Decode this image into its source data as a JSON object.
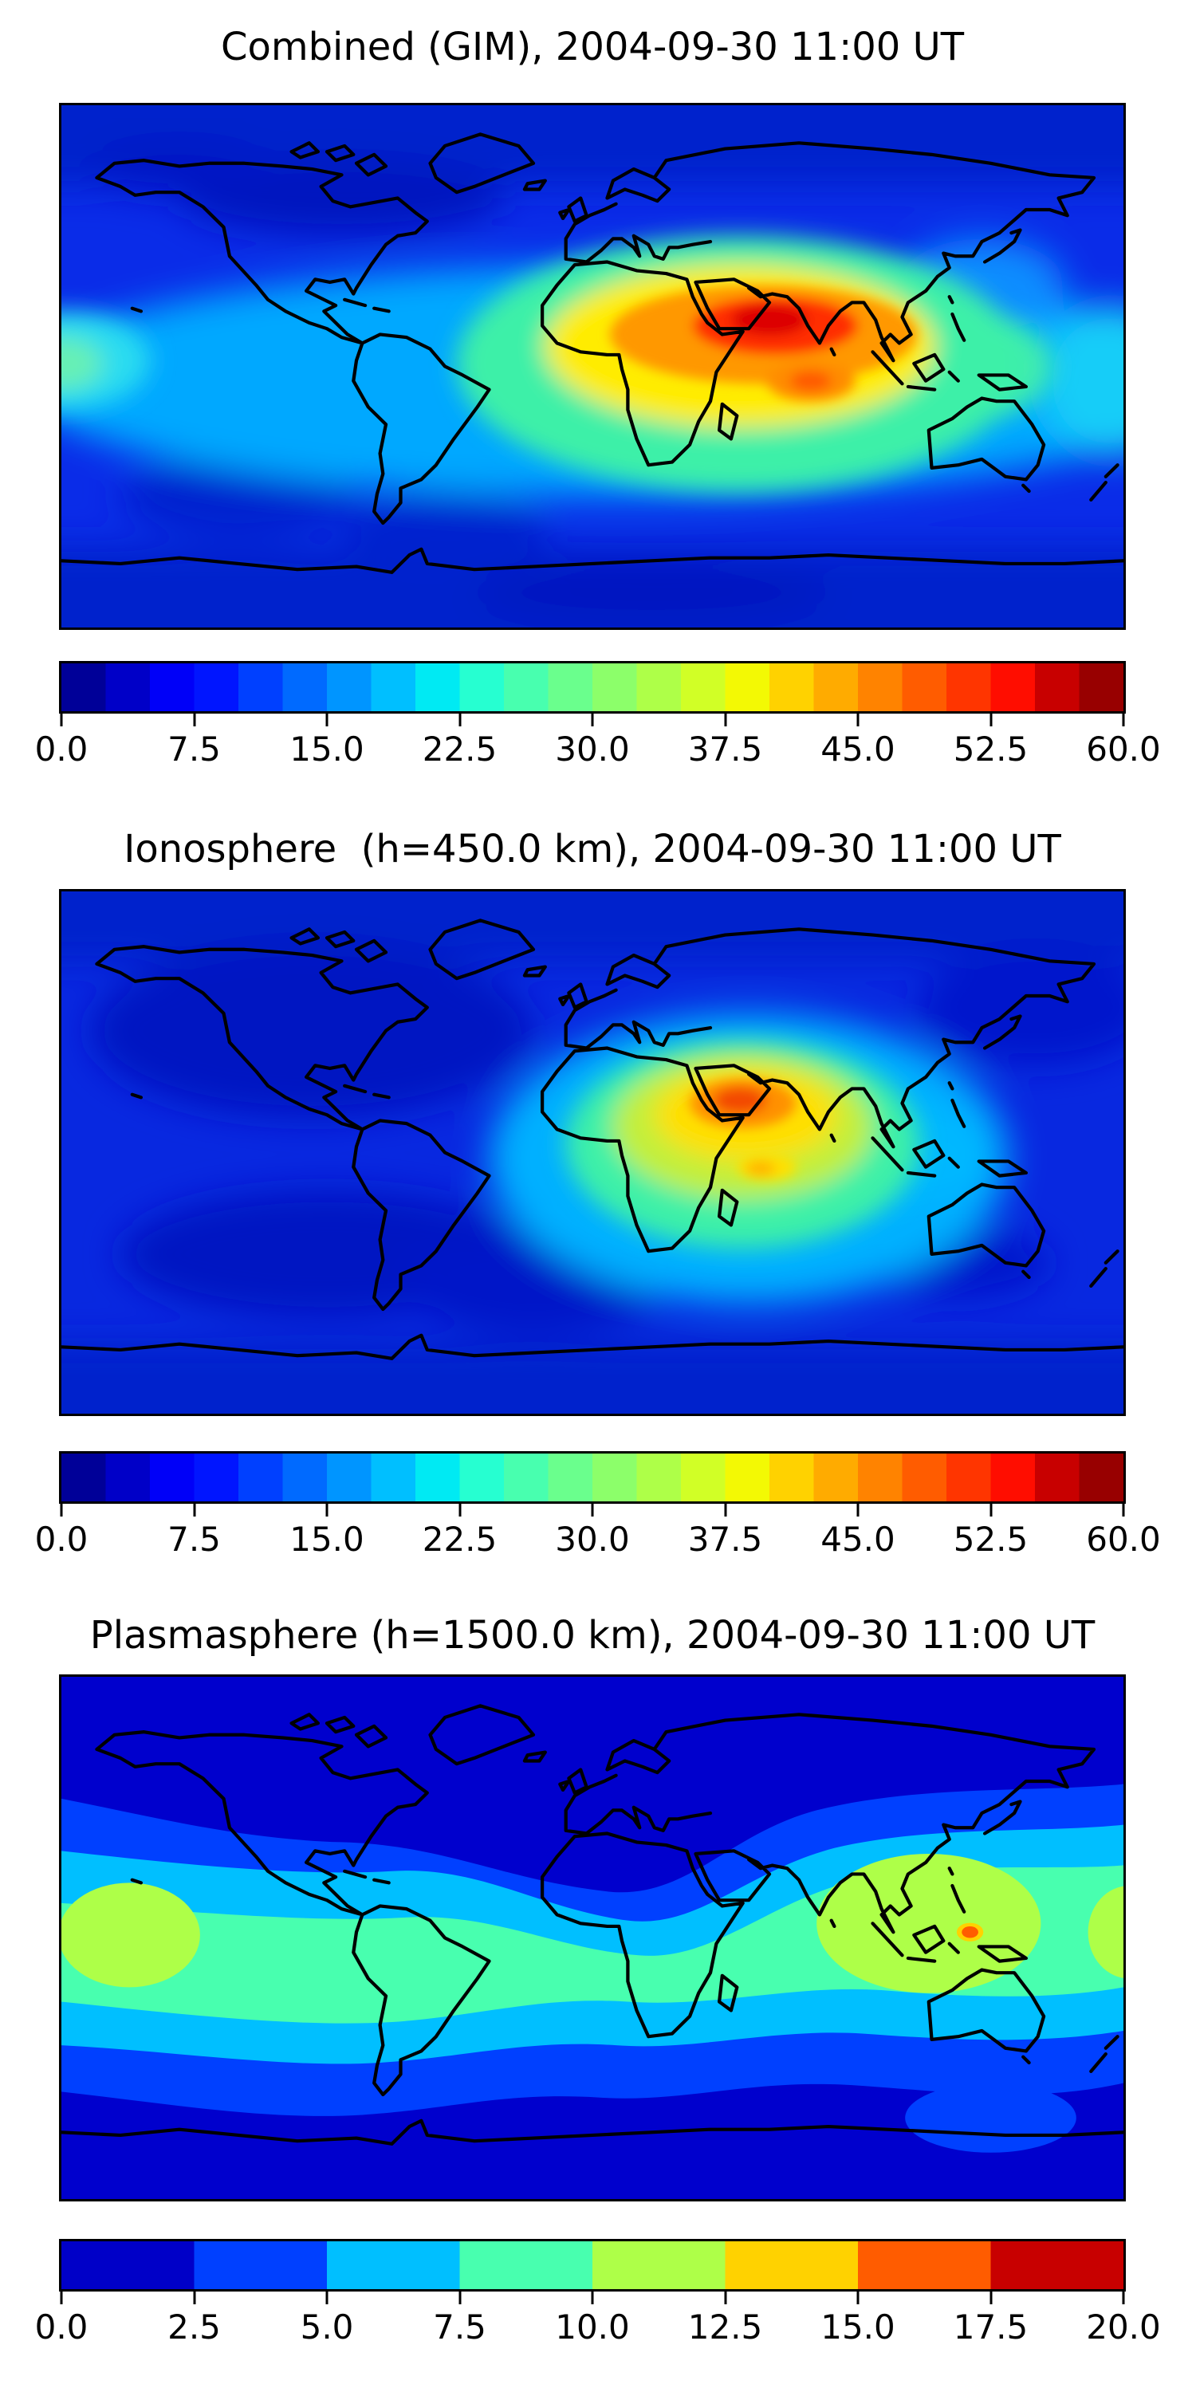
{
  "chart_data": [
    {
      "type": "heatmap",
      "subtype": "filled-contour-world-map",
      "title": "Combined (GIM), 2004-09-30 11:00 UT",
      "projection": "equirectangular",
      "lon_range": [
        -180,
        180
      ],
      "lat_range": [
        -90,
        90
      ],
      "grid_visible": false,
      "colormap": "jet",
      "levels_min": 0.0,
      "levels_max": 60.0,
      "levels_step": 2.5,
      "n_levels": 24,
      "colorbar_position": "bottom",
      "colorbar_ticks": [
        "0.0",
        "7.5",
        "15.0",
        "22.5",
        "30.0",
        "37.5",
        "45.0",
        "52.5",
        "60.0"
      ],
      "colorbar_colors": [
        "#000098",
        "#0000c8",
        "#0000f8",
        "#0015ff",
        "#0040ff",
        "#006aff",
        "#0095ff",
        "#00bfff",
        "#00eaf3",
        "#26ffd1",
        "#48ffaf",
        "#6aff8d",
        "#8cff6a",
        "#aeff48",
        "#d1ff26",
        "#f3f904",
        "#ffd200",
        "#ffab00",
        "#ff8300",
        "#ff5c00",
        "#ff3500",
        "#ff0d00",
        "#c80000",
        "#980000"
      ],
      "features": [
        {
          "name": "primary-maximum",
          "description": "deep red maximum over the Arabian Peninsula / Arabian Sea",
          "lon": 55,
          "lat": 15,
          "value_approx": 57.5
        },
        {
          "name": "secondary-maximum",
          "description": "orange secondary crest south of India",
          "lon": 74,
          "lat": -5,
          "value_approx": 45
        },
        {
          "name": "daytime-crest",
          "description": "yellow-orange band from North Africa across India to Southeast Asia",
          "value_approx": "35-50"
        },
        {
          "name": "equatorial-enhancement",
          "description": "cyan-green elevated band along low latitudes, reaching both map edges",
          "value_approx": "15-30"
        },
        {
          "name": "west-edge-patch",
          "description": "bright cyan-green patch at the western map edge near the equator",
          "lon": -178,
          "lat": 0,
          "value_approx": 25
        },
        {
          "name": "night-minima",
          "description": "dark blue minima over the Americas, high latitudes and southern ocean",
          "value_approx": "2.5-10"
        }
      ],
      "approx_grid": {
        "lons": [
          -150,
          -105,
          -60,
          -15,
          30,
          75,
          120,
          165
        ],
        "lats": [
          75,
          45,
          15,
          -15,
          -45,
          -75
        ],
        "values": [
          [
            5,
            5,
            5,
            5,
            6,
            6,
            6,
            5
          ],
          [
            8,
            6,
            5,
            8,
            14,
            18,
            12,
            8
          ],
          [
            18,
            12,
            12,
            25,
            42,
            52,
            30,
            20
          ],
          [
            18,
            14,
            10,
            16,
            28,
            30,
            20,
            15
          ],
          [
            8,
            7,
            6,
            7,
            10,
            12,
            10,
            9
          ],
          [
            5,
            5,
            5,
            5,
            6,
            6,
            5,
            5
          ]
        ]
      }
    },
    {
      "type": "heatmap",
      "subtype": "filled-contour-world-map",
      "title": "Ionosphere  (h=450.0 km), 2004-09-30 11:00 UT",
      "projection": "equirectangular",
      "lon_range": [
        -180,
        180
      ],
      "lat_range": [
        -90,
        90
      ],
      "grid_visible": false,
      "colormap": "jet",
      "levels_min": 0.0,
      "levels_max": 60.0,
      "levels_step": 2.5,
      "n_levels": 24,
      "colorbar_position": "bottom",
      "colorbar_ticks": [
        "0.0",
        "7.5",
        "15.0",
        "22.5",
        "30.0",
        "37.5",
        "45.0",
        "52.5",
        "60.0"
      ],
      "colorbar_colors": [
        "#000098",
        "#0000c8",
        "#0000f8",
        "#0015ff",
        "#0040ff",
        "#006aff",
        "#0095ff",
        "#00bfff",
        "#00eaf3",
        "#26ffd1",
        "#48ffaf",
        "#6aff8d",
        "#8cff6a",
        "#aeff48",
        "#d1ff26",
        "#f3f904",
        "#ffd200",
        "#ffab00",
        "#ff8300",
        "#ff5c00",
        "#ff3500",
        "#ff0d00",
        "#c80000",
        "#980000"
      ],
      "features": [
        {
          "name": "primary-maximum",
          "description": "compact orange-red maximum over the Arabian Peninsula",
          "lon": 50,
          "lat": 17,
          "value_approx": 50
        },
        {
          "name": "secondary-spot",
          "description": "small yellow spot in the Indian Ocean south of the equator",
          "lon": 60,
          "lat": -5,
          "value_approx": 40
        },
        {
          "name": "surrounding-crest",
          "description": "yellow-green halo over Africa, Middle East and India",
          "value_approx": "25-40"
        },
        {
          "name": "night-minima",
          "description": "large dark navy region over the Americas and Pacific",
          "value_approx": "2.5-7.5"
        }
      ],
      "approx_grid": {
        "lons": [
          -150,
          -105,
          -60,
          -15,
          30,
          75,
          120,
          165
        ],
        "lats": [
          75,
          45,
          15,
          -15,
          -45,
          -75
        ],
        "values": [
          [
            4,
            4,
            4,
            4,
            5,
            5,
            5,
            4
          ],
          [
            5,
            4,
            4,
            6,
            10,
            12,
            8,
            5
          ],
          [
            10,
            6,
            6,
            10,
            25,
            45,
            25,
            12
          ],
          [
            10,
            7,
            5,
            8,
            18,
            22,
            16,
            10
          ],
          [
            5,
            4,
            4,
            5,
            8,
            9,
            8,
            6
          ],
          [
            4,
            4,
            4,
            4,
            5,
            5,
            4,
            4
          ]
        ]
      }
    },
    {
      "type": "heatmap",
      "subtype": "filled-contour-world-map",
      "title": "Plasmasphere (h=1500.0 km), 2004-09-30 11:00 UT",
      "projection": "equirectangular",
      "lon_range": [
        -180,
        180
      ],
      "lat_range": [
        -90,
        90
      ],
      "grid_visible": false,
      "colormap": "jet",
      "levels_min": 0.0,
      "levels_max": 20.0,
      "levels_step": 2.5,
      "n_levels": 8,
      "colorbar_position": "bottom",
      "colorbar_ticks": [
        "0.0",
        "2.5",
        "5.0",
        "7.5",
        "10.0",
        "12.5",
        "15.0",
        "17.5",
        "20.0"
      ],
      "colorbar_colors": [
        "#0000c8",
        "#0040ff",
        "#00bfff",
        "#48ffaf",
        "#aeff48",
        "#ffd200",
        "#ff5c00",
        "#c80000"
      ],
      "features": [
        {
          "name": "equatorial-belt",
          "description": "wavy turquoise belt along the geomagnetic equator",
          "value_approx": "7.5-10"
        },
        {
          "name": "pacific-maximum",
          "description": "yellow-green blob at the western map edge in the central Pacific",
          "lon": -158,
          "lat": 0,
          "value_approx": 11
        },
        {
          "name": "southeast-asia-maximum",
          "description": "yellow-green blob over Indonesia / Southeast Asia",
          "lon": 114,
          "lat": 5,
          "value_approx": 11
        },
        {
          "name": "borneo-speck",
          "description": "tiny orange speck near Borneo",
          "lon": 128,
          "lat": 2,
          "value_approx": 16
        },
        {
          "name": "southern-ocean-oval",
          "description": "light blue oval in the dark southern band southeast of Australia",
          "lon": 135,
          "lat": -62,
          "value_approx": 4
        },
        {
          "name": "polar-minima",
          "description": "uniform dark blue at high northern and southern latitudes",
          "value_approx": "0-2.5"
        }
      ],
      "approx_grid": {
        "lons": [
          -150,
          -105,
          -60,
          -15,
          30,
          75,
          120,
          165
        ],
        "lats": [
          75,
          45,
          15,
          -15,
          -45,
          -75
        ],
        "values": [
          [
            1,
            1,
            1,
            1,
            1,
            1,
            1,
            1
          ],
          [
            3,
            4,
            3,
            2,
            2,
            3,
            6,
            6
          ],
          [
            9,
            7,
            6,
            6,
            6,
            8,
            11,
            9
          ],
          [
            11,
            8,
            8,
            7,
            8,
            9,
            11,
            9
          ],
          [
            4,
            5,
            5,
            4,
            4,
            4,
            5,
            6
          ],
          [
            1,
            1,
            1,
            1,
            1,
            1,
            1,
            1
          ]
        ]
      }
    }
  ]
}
